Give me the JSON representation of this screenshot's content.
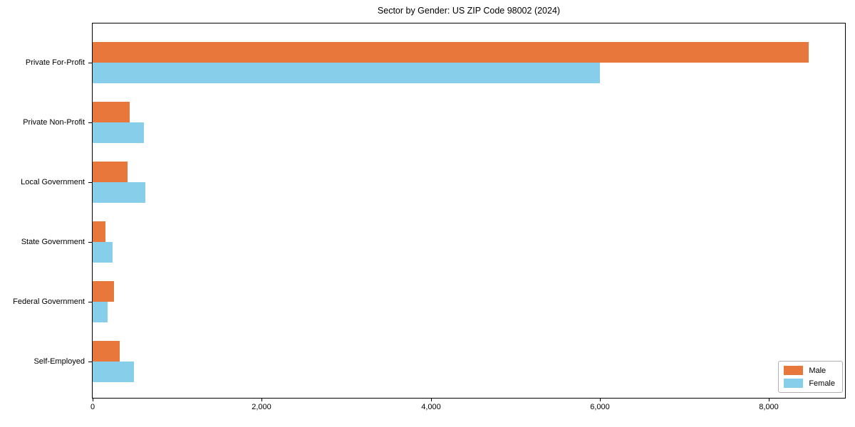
{
  "chart_data": {
    "type": "bar",
    "orientation": "horizontal",
    "title": "Sector by Gender: US ZIP Code 98002 (2024)",
    "xlabel": "",
    "ylabel": "",
    "categories": [
      "Private For-Profit",
      "Private Non-Profit",
      "Local Government",
      "State Government",
      "Federal Government",
      "Self-Employed"
    ],
    "series": [
      {
        "name": "Male",
        "color": "#e8773c",
        "values": [
          8470,
          440,
          410,
          155,
          250,
          320
        ]
      },
      {
        "name": "Female",
        "color": "#87ceeb",
        "values": [
          6000,
          610,
          620,
          240,
          175,
          490
        ]
      }
    ],
    "xlim": [
      0,
      8900
    ],
    "x_ticks": [
      {
        "value": 0,
        "label": "0"
      },
      {
        "value": 2000,
        "label": "2,000"
      },
      {
        "value": 4000,
        "label": "4,000"
      },
      {
        "value": 6000,
        "label": "6,000"
      },
      {
        "value": 8000,
        "label": "8,000"
      }
    ],
    "grid": false,
    "legend": {
      "position": "lower right",
      "entries": [
        "Male",
        "Female"
      ]
    }
  }
}
